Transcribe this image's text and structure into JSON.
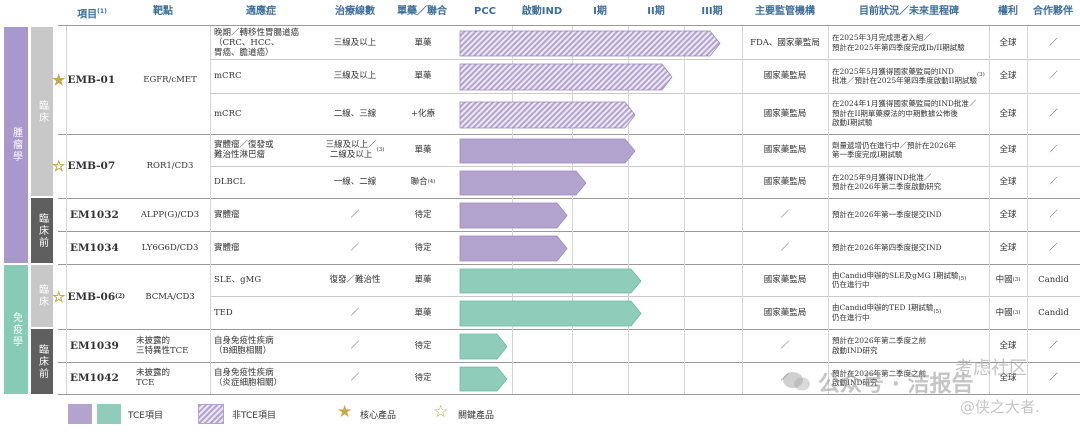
{
  "headers": {
    "project": "項目",
    "project_note": "(1)",
    "target": "靶點",
    "indication": "適應症",
    "line": "治療線數",
    "mono_combo": "單藥／聯合",
    "pcc": "PCC",
    "ind": "啟動IND",
    "phase1": "I期",
    "phase2": "II期",
    "phase3": "III期",
    "regulator": "主要監管機構",
    "status": "目前狀況／未來里程碑",
    "rights": "權利",
    "partner": "合作夥伴"
  },
  "side_labels": {
    "oncology": "腫瘤學",
    "immunology": "免疫學",
    "clinical": "臨床",
    "preclinical": "臨床前"
  },
  "projects": [
    {
      "name": "EMB-01",
      "target": "EGFR/cMET",
      "star": "core"
    },
    {
      "name": "EMB-07",
      "target": "ROR1/CD3",
      "star": "key"
    },
    {
      "name": "EM1032",
      "target": "ALPP(G)/CD3",
      "star": ""
    },
    {
      "name": "EM1034",
      "target": "LY6G6D/CD3",
      "star": ""
    },
    {
      "name": "EMB-06",
      "name_note": "(2)",
      "target": "BCMA/CD3",
      "star": "key"
    },
    {
      "name": "EM1039",
      "target": "未披露的\n三特異性TCE",
      "star": ""
    },
    {
      "name": "EM1042",
      "target": "未披露的\nTCE",
      "star": ""
    }
  ],
  "rows": [
    {
      "indication": "晚期／轉移性胃腸道癌\n（CRC、HCC、\n胃癌、膽道癌）",
      "line": "三線及以上",
      "mono": "單藥",
      "regulator": "FDA、國家藥監局",
      "status": "在2025年3月完成患者入組／\n預計在2025年第四季度完成Ib/II期試驗",
      "rights": "全球",
      "partner": "／",
      "bar": 0.923,
      "style": "hatch"
    },
    {
      "indication": "mCRC",
      "line": "三線及以上",
      "mono": "單藥",
      "regulator": "國家藥監局",
      "status": "在2025年5月獲得國家藥監局的IND\n批准／預計在2025年第四季度啟動II期試驗",
      "status_note": "(3)",
      "rights": "全球",
      "partner": "／",
      "bar": 0.753,
      "style": "hatch"
    },
    {
      "indication": "mCRC",
      "line": "二線、三線",
      "mono": "+化療",
      "regulator": "國家藥監局",
      "status": "在2024年1月獲得國家藥監局的IND批准／\n預計在II期單藥療法的中期數據公佈後\n啟動I期試驗",
      "rights": "全球",
      "partner": "／",
      "bar": 0.621,
      "style": "hatch"
    },
    {
      "indication": "實體瘤／復發或\n難治性淋巴瘤",
      "line": "三線及以上／\n二線及以上",
      "line_note": "(3)",
      "mono": "單藥",
      "regulator": "國家藥監局",
      "status": "劑量遞增仍在進行中／預計在2026年\n第一季度完成I期試驗",
      "rights": "全球",
      "partner": "／",
      "bar": 0.621,
      "style": "purple"
    },
    {
      "indication": "DLBCL",
      "line": "一線、二線",
      "mono": "聯合",
      "mono_note": "(4)",
      "regulator": "國家藥監局",
      "status": "在2025年9月獲得IND批准／\n預計在2026年第二季度啟動研究",
      "rights": "全球",
      "partner": "／",
      "bar": 0.447,
      "style": "purple"
    },
    {
      "indication": "實體瘤",
      "line": "／",
      "mono": "待定",
      "regulator": "／",
      "status": "預計在2026年第一季度提交IND",
      "rights": "全球",
      "partner": "／",
      "bar": 0.383,
      "style": "purple"
    },
    {
      "indication": "實體瘤",
      "line": "／",
      "mono": "待定",
      "regulator": "／",
      "status": "預計在2026年第四季度提交IND",
      "rights": "全球",
      "partner": "／",
      "bar": 0.383,
      "style": "purple"
    },
    {
      "indication": "SLE、gMG",
      "line": "復發／難治性",
      "mono": "單藥",
      "regulator": "國家藥監局",
      "status": "由Candid申辦的SLE及gMG I期試驗\n仍在進行中",
      "status_note": "(5)",
      "rights": "中國",
      "rights_note": "(3)",
      "partner": "Candid",
      "bar": 0.642,
      "style": "teal"
    },
    {
      "indication": "TED",
      "line": "／",
      "mono": "單藥",
      "regulator": "國家藥監局",
      "status": "由Candid申辦的TED I期試驗\n仍在進行中",
      "status_note": "(5)",
      "rights": "中國",
      "rights_note": "(3)",
      "partner": "Candid",
      "bar": 0.642,
      "style": "teal"
    },
    {
      "indication": "自身免疫性疾病\n（B細胞相關）",
      "line": "／",
      "mono": "待定",
      "regulator": "／",
      "status": "預計在2026年第二季度之前\n啟動IND研究",
      "rights": "全球",
      "partner": "／",
      "bar": 0.17,
      "style": "teal"
    },
    {
      "indication": "自身免疫性疾病\n（炎症細胞相關）",
      "line": "／",
      "mono": "待定",
      "regulator": "／",
      "status": "預計在2026年第二季度之前\n啟動IND研究",
      "rights": "全球",
      "partner": "／",
      "bar": 0.17,
      "style": "teal"
    }
  ],
  "legend": {
    "tce": "TCE項目",
    "non_tce": "非TCE項目",
    "core": "核心產品",
    "key": "關鍵產品"
  },
  "watermark": {
    "line1": "公众号 · 洁报告",
    "line2": "@侠之大者.",
    "line3": "考虑社区"
  },
  "colors": {
    "purple": "#b3a3cf",
    "teal": "#8fcdba",
    "oncology": "#a898cc",
    "immunology": "#86cbb6",
    "clinical": "#c8c8c8",
    "preclinical": "#5f5f5f",
    "header": "#3d6e9a",
    "star": "#c8a84b"
  }
}
